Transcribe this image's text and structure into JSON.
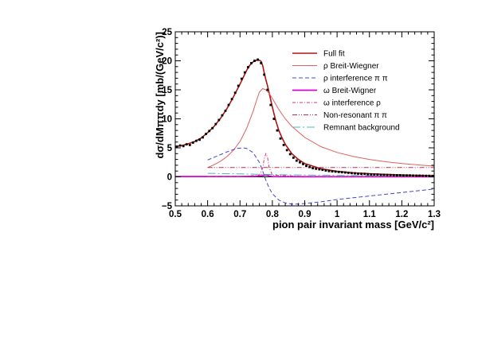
{
  "chart_data": {
    "type": "line",
    "xlabel": "pion pair invariant mass [GeV/c²]",
    "ylabel": "dσ/dMππdy [mb/(GeV/c²)]",
    "xlim": [
      0.5,
      1.3
    ],
    "ylim": [
      -5,
      25
    ],
    "x_ticks": [
      "0.5",
      "0.6",
      "0.7",
      "0.8",
      "0.9",
      "1",
      "1.1",
      "1.2",
      "1.3"
    ],
    "y_ticks": [
      "−5",
      "0",
      "5",
      "10",
      "15",
      "20",
      "25"
    ],
    "grid": false,
    "legend_position": "top-right",
    "data_points": {
      "x": [
        0.505,
        0.515,
        0.525,
        0.535,
        0.545,
        0.555,
        0.565,
        0.575,
        0.585,
        0.595,
        0.605,
        0.615,
        0.625,
        0.635,
        0.645,
        0.655,
        0.665,
        0.675,
        0.685,
        0.695,
        0.705,
        0.715,
        0.725,
        0.735,
        0.745,
        0.755,
        0.765,
        0.775,
        0.785,
        0.795,
        0.805,
        0.815,
        0.825,
        0.835,
        0.845,
        0.855,
        0.865,
        0.875,
        0.885,
        0.895,
        0.905,
        0.915,
        0.925,
        0.935,
        0.945,
        0.955,
        0.965,
        0.975,
        0.985,
        0.995,
        1.005,
        1.015,
        1.025,
        1.035,
        1.045,
        1.055,
        1.065,
        1.075,
        1.085,
        1.095,
        1.105,
        1.115,
        1.125,
        1.135,
        1.145,
        1.155,
        1.165,
        1.175,
        1.185,
        1.195,
        1.205,
        1.215,
        1.225,
        1.235,
        1.245,
        1.255,
        1.265,
        1.275,
        1.285,
        1.295
      ],
      "y": [
        5.2,
        5.4,
        5.3,
        5.6,
        5.5,
        5.9,
        6.2,
        6.4,
        6.8,
        7.4,
        7.9,
        8.4,
        9.1,
        9.8,
        10.6,
        11.4,
        12.4,
        13.4,
        14.5,
        15.7,
        16.9,
        18.0,
        18.9,
        19.6,
        20.0,
        20.2,
        19.6,
        17.6,
        15.0,
        12.4,
        10.0,
        8.0,
        6.6,
        5.5,
        4.6,
        3.9,
        3.3,
        2.8,
        2.5,
        2.2,
        1.9,
        1.7,
        1.5,
        1.4,
        1.3,
        1.2,
        1.1,
        1.0,
        0.95,
        0.9,
        0.85,
        0.8,
        0.75,
        0.7,
        0.65,
        0.6,
        0.55,
        0.5,
        0.5,
        0.45,
        0.42,
        0.4,
        0.38,
        0.36,
        0.35,
        0.33,
        0.32,
        0.3,
        0.28,
        0.27,
        0.25,
        0.25,
        0.24,
        0.22,
        0.2,
        0.2,
        0.19,
        0.18,
        0.18,
        0.17
      ]
    },
    "series": [
      {
        "name": "Full fit",
        "color": "#b01515",
        "width": 1.6,
        "dash": "",
        "x": [
          0.5,
          0.52,
          0.54,
          0.56,
          0.58,
          0.6,
          0.62,
          0.64,
          0.66,
          0.68,
          0.7,
          0.72,
          0.73,
          0.74,
          0.75,
          0.76,
          0.765,
          0.77,
          0.775,
          0.78,
          0.785,
          0.79,
          0.8,
          0.81,
          0.82,
          0.83,
          0.84,
          0.86,
          0.88,
          0.9,
          0.95,
          1.0,
          1.05,
          1.1,
          1.15,
          1.2,
          1.25,
          1.3
        ],
        "y": [
          5.2,
          5.4,
          5.7,
          6.1,
          6.7,
          7.6,
          8.7,
          10.1,
          11.8,
          13.8,
          16.0,
          18.3,
          19.2,
          19.8,
          20.1,
          20.1,
          19.9,
          19.2,
          17.9,
          16.7,
          15.7,
          14.5,
          12.0,
          9.8,
          8.0,
          6.7,
          5.6,
          4.0,
          3.0,
          2.3,
          1.4,
          0.95,
          0.7,
          0.55,
          0.42,
          0.32,
          0.25,
          0.2
        ]
      },
      {
        "name": "ρ Breit-Wiegner",
        "color": "#e06060",
        "width": 1.0,
        "dash": "",
        "x": [
          0.6,
          0.62,
          0.64,
          0.66,
          0.68,
          0.7,
          0.72,
          0.74,
          0.75,
          0.76,
          0.77,
          0.78,
          0.79,
          0.8,
          0.82,
          0.84,
          0.86,
          0.9,
          0.95,
          1.0,
          1.05,
          1.1,
          1.15,
          1.2,
          1.25,
          1.3
        ],
        "y": [
          1.6,
          2.1,
          2.7,
          3.5,
          4.6,
          6.1,
          8.3,
          11.2,
          13.0,
          14.6,
          15.2,
          15.0,
          14.4,
          13.5,
          11.6,
          10.0,
          8.7,
          6.8,
          5.2,
          4.2,
          3.5,
          3.0,
          2.6,
          2.3,
          2.05,
          1.85
        ]
      },
      {
        "name": "ρ interference π π",
        "color": "#4444cc",
        "width": 1.0,
        "dash": "5,3",
        "x": [
          0.6,
          0.63,
          0.66,
          0.69,
          0.71,
          0.72,
          0.74,
          0.76,
          0.77,
          0.78,
          0.79,
          0.8,
          0.82,
          0.84,
          0.86,
          0.88,
          0.9,
          0.95,
          1.0,
          1.05,
          1.1,
          1.15,
          1.2,
          1.25,
          1.3
        ],
        "y": [
          2.9,
          3.6,
          4.3,
          4.9,
          5.0,
          4.9,
          4.2,
          2.5,
          1.0,
          -0.6,
          -1.9,
          -2.9,
          -4.0,
          -4.5,
          -4.7,
          -4.7,
          -4.6,
          -4.3,
          -3.9,
          -3.6,
          -3.3,
          -3.0,
          -2.7,
          -2.4,
          -2.1
        ]
      },
      {
        "name": "ω Breit-Wigner",
        "color": "#d400d4",
        "width": 1.8,
        "dash": "",
        "x": [
          0.5,
          0.6,
          0.7,
          0.75,
          0.77,
          0.78,
          0.79,
          0.8,
          0.9,
          1.0,
          1.1,
          1.2,
          1.3
        ],
        "y": [
          0.05,
          0.05,
          0.05,
          0.08,
          0.2,
          0.35,
          0.15,
          0.05,
          0.03,
          0.03,
          0.03,
          0.03,
          0.03
        ]
      },
      {
        "name": "ω interference ρ",
        "color": "#dd3377",
        "width": 1.0,
        "dash": "4,2,1,2",
        "x": [
          0.6,
          0.7,
          0.76,
          0.77,
          0.775,
          0.78,
          0.785,
          0.79,
          0.8,
          0.9,
          1.0,
          1.1,
          1.2,
          1.3
        ],
        "y": [
          0.05,
          0.05,
          0.3,
          1.5,
          3.2,
          4.0,
          3.4,
          1.6,
          0.3,
          0.05,
          0.03,
          0.03,
          0.03,
          0.03
        ]
      },
      {
        "name": "Non-resonant π π",
        "color": "#aa3355",
        "width": 1.0,
        "dash": "6,2,1,2,1,2",
        "x": [
          0.6,
          0.7,
          0.8,
          0.9,
          1.0,
          1.1,
          1.2,
          1.3
        ],
        "y": [
          1.6,
          1.6,
          1.6,
          1.6,
          1.6,
          1.6,
          1.6,
          1.6
        ]
      },
      {
        "name": "Remnant background",
        "color": "#44b8c8",
        "width": 1.0,
        "dash": "10,3,2,3",
        "x": [
          0.6,
          0.65,
          0.7,
          0.75,
          0.8,
          0.85,
          0.9,
          1.0,
          1.1,
          1.2,
          1.3
        ],
        "y": [
          0.6,
          0.55,
          0.5,
          0.45,
          0.4,
          0.36,
          0.32,
          0.26,
          0.2,
          0.15,
          0.1
        ]
      }
    ]
  }
}
